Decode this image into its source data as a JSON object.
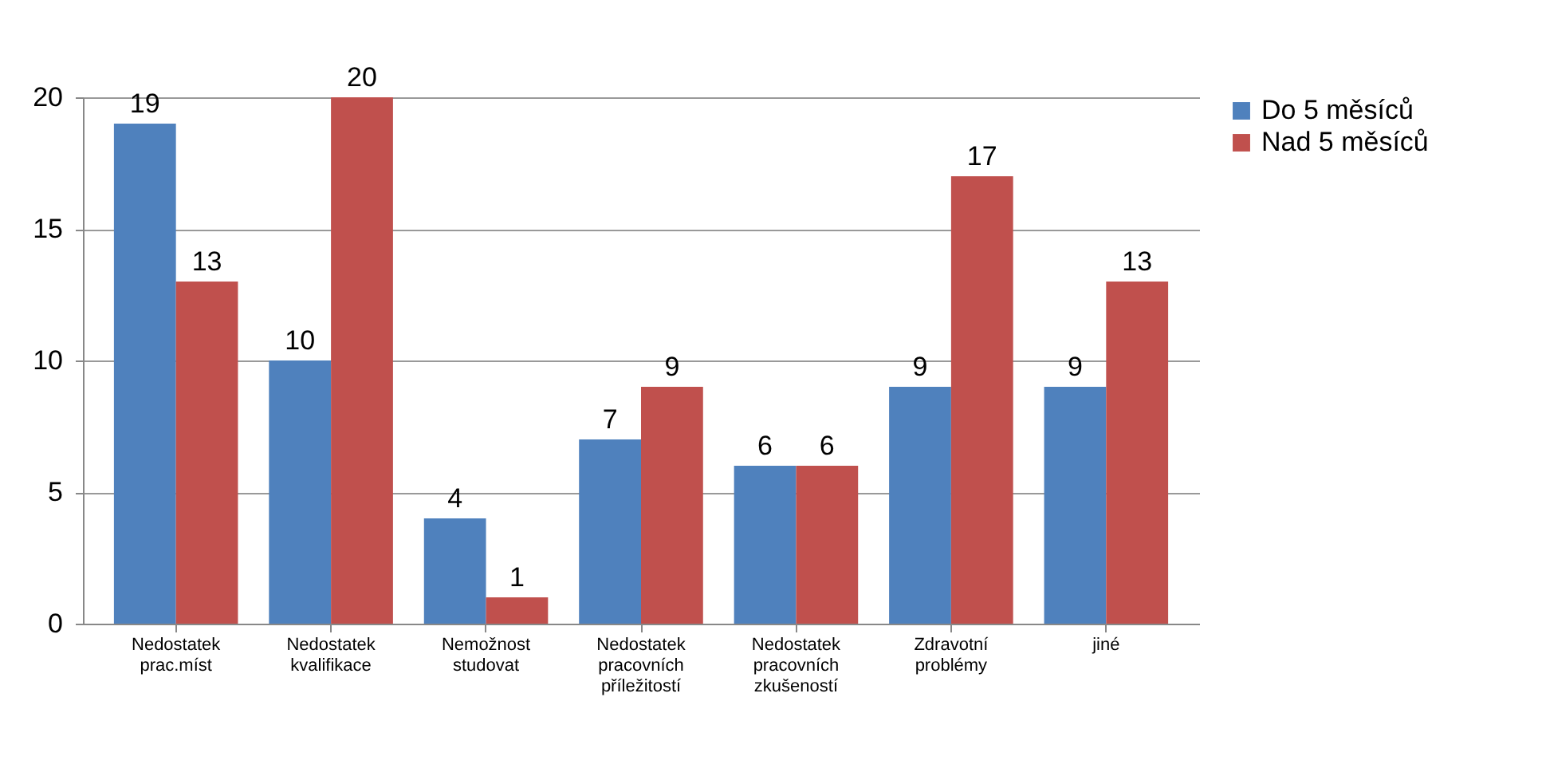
{
  "chart_data": {
    "type": "bar",
    "categories": [
      "Nedostatek prac.míst",
      "Nedostatek kvalifikace",
      "Nemožnost studovat",
      "Nedostatek pracovních příležitostí",
      "Nedostatek pracovních zkušeností",
      "Zdravotní problémy",
      "jiné"
    ],
    "series": [
      {
        "name": "Do 5 měsíců",
        "color": "#4f81bd",
        "values": [
          19,
          10,
          4,
          7,
          6,
          9,
          9
        ]
      },
      {
        "name": "Nad 5 měsíců",
        "color": "#c0504d",
        "values": [
          13,
          20,
          1,
          9,
          6,
          17,
          13
        ]
      }
    ],
    "ylim": [
      0,
      20
    ],
    "yticks": [
      0,
      5,
      10,
      15,
      20
    ],
    "grid": "y",
    "legend": "right",
    "data_labels": true
  }
}
